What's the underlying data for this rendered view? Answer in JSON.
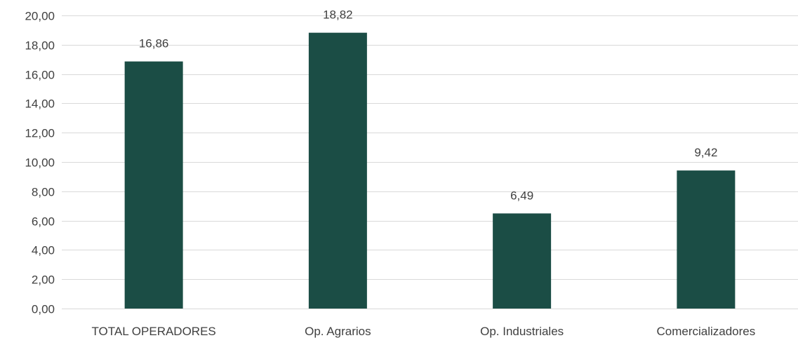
{
  "chart_data": {
    "type": "bar",
    "categories": [
      "TOTAL OPERADORES",
      "Op. Agrarios",
      "Op. Industriales",
      "Comercializadores"
    ],
    "values": [
      16.86,
      18.82,
      6.49,
      9.42
    ],
    "value_labels": [
      "16,86",
      "18,82",
      "6,49",
      "9,42"
    ],
    "y_tick_labels": [
      "0,00",
      "2,00",
      "4,00",
      "6,00",
      "8,00",
      "10,00",
      "12,00",
      "14,00",
      "16,00",
      "18,00",
      "20,00"
    ],
    "ylim": [
      0,
      20
    ],
    "grid": true,
    "legend": "none",
    "bar_color": "#1b4d45"
  }
}
